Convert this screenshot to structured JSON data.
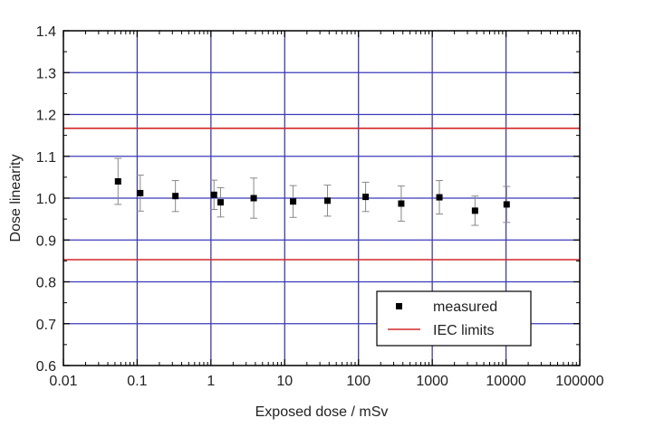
{
  "chart_data": {
    "type": "scatter",
    "title": "",
    "xlabel": "Exposed dose / mSv",
    "ylabel": "Dose linearity",
    "x_scale": "log",
    "xlim": [
      0.01,
      100000
    ],
    "ylim": [
      0.6,
      1.4
    ],
    "x_ticks": [
      0.01,
      0.1,
      1,
      10,
      100,
      1000,
      10000,
      100000
    ],
    "x_tick_labels": [
      "0.01",
      "0.1",
      "1",
      "10",
      "100",
      "1000",
      "10000",
      "100000"
    ],
    "y_ticks": [
      0.6,
      0.7,
      0.8,
      0.9,
      1.0,
      1.1,
      1.2,
      1.3,
      1.4
    ],
    "y_tick_labels": [
      "0.6",
      "0.7",
      "0.8",
      "0.9",
      "1.0",
      "1.1",
      "1.2",
      "1.3",
      "1.4"
    ],
    "grid": true,
    "legend_position": "bottom-right",
    "series": [
      {
        "name": "measured",
        "marker": "square",
        "color": "#000000",
        "errorbar_color": "#888888",
        "points": [
          {
            "x": 0.055,
            "y": 1.04,
            "err": 0.055
          },
          {
            "x": 0.11,
            "y": 1.012,
            "err": 0.043
          },
          {
            "x": 0.33,
            "y": 1.005,
            "err": 0.037
          },
          {
            "x": 1.1,
            "y": 1.008,
            "err": 0.035
          },
          {
            "x": 1.35,
            "y": 0.99,
            "err": 0.035
          },
          {
            "x": 3.8,
            "y": 1.0,
            "err": 0.048
          },
          {
            "x": 13,
            "y": 0.992,
            "err": 0.038
          },
          {
            "x": 38,
            "y": 0.994,
            "err": 0.037
          },
          {
            "x": 125,
            "y": 1.003,
            "err": 0.035
          },
          {
            "x": 380,
            "y": 0.987,
            "err": 0.042
          },
          {
            "x": 1250,
            "y": 1.002,
            "err": 0.04
          },
          {
            "x": 3800,
            "y": 0.97,
            "err": 0.035
          },
          {
            "x": 10200,
            "y": 0.985,
            "err": 0.043
          }
        ]
      },
      {
        "name": "IEC limits",
        "type": "hline",
        "color": "#d42a2a",
        "values": [
          1.167,
          0.853
        ]
      }
    ],
    "colors": {
      "grid": "#3b3bb8",
      "frame": "#000000"
    }
  }
}
